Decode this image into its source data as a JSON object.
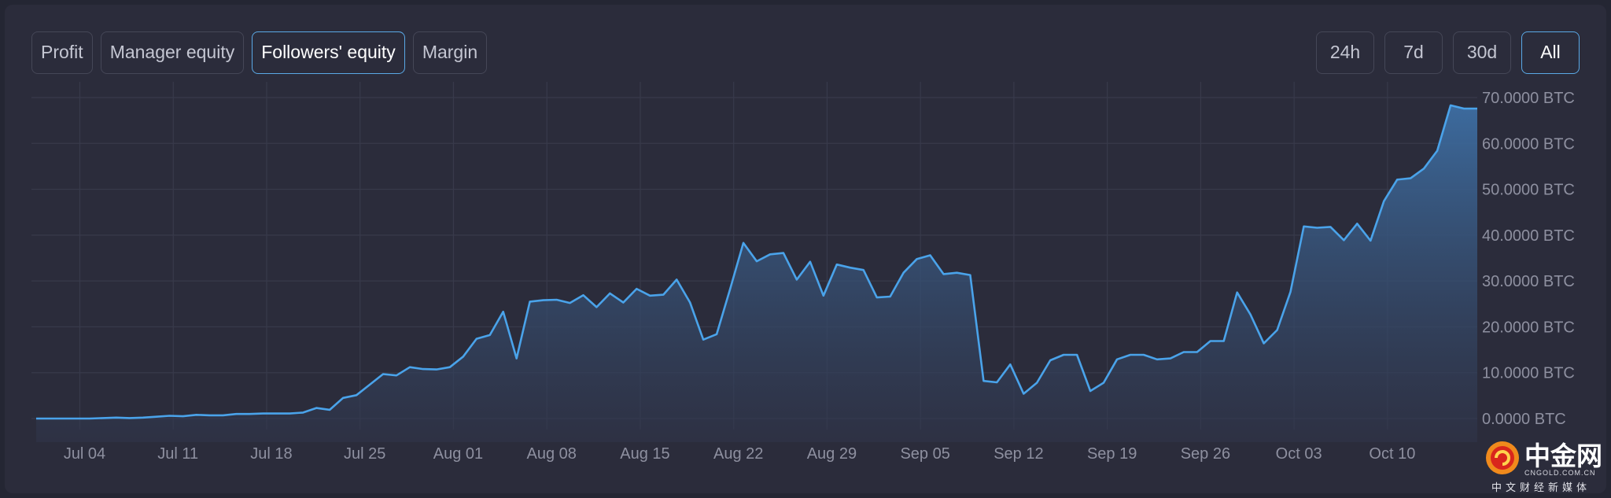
{
  "tabs": [
    {
      "label": "Profit",
      "active": false
    },
    {
      "label": "Manager equity",
      "active": false
    },
    {
      "label": "Followers' equity",
      "active": true
    },
    {
      "label": "Margin",
      "active": false
    }
  ],
  "ranges": [
    {
      "label": "24h",
      "active": false
    },
    {
      "label": "7d",
      "active": false
    },
    {
      "label": "30d",
      "active": false
    },
    {
      "label": "All",
      "active": true
    }
  ],
  "colors": {
    "line": "#4aa3ea",
    "active_border": "#5aa9e6",
    "grid": "#383a4b",
    "background": "#2b2c3b"
  },
  "chart_data": {
    "type": "area",
    "xlabel": "",
    "ylabel": "",
    "x_ticks": [
      "Jul 04",
      "Jul 11",
      "Jul 18",
      "Jul 25",
      "Aug 01",
      "Aug 08",
      "Aug 15",
      "Aug 22",
      "Aug 29",
      "Sep 05",
      "Sep 12",
      "Sep 19",
      "Sep 26",
      "Oct 03",
      "Oct 10"
    ],
    "y_ticks": [
      "0.0000 BTC",
      "10.0000 BTC",
      "20.0000 BTC",
      "30.0000 BTC",
      "40.0000 BTC",
      "50.0000 BTC",
      "60.0000 BTC",
      "70.0000 BTC"
    ],
    "ylim": [
      0,
      70
    ],
    "grid": true,
    "x_start": "Jun 28",
    "x_end": "Oct 16",
    "series": [
      {
        "values": [
          0,
          0,
          0,
          0,
          0,
          0.1,
          0.2,
          0.1,
          0.2,
          0.4,
          0.6,
          0.5,
          0.8,
          0.7,
          0.7,
          1,
          1,
          1.1,
          1.1,
          1.1,
          1.3,
          2.3,
          1.9,
          4.5,
          5.1,
          7.4,
          9.7,
          9.4,
          11.2,
          10.8,
          10.7,
          11.2,
          13.5,
          17.4,
          18.2,
          23.3,
          13.1,
          25.5,
          25.8,
          25.9,
          25.2,
          26.9,
          24.3,
          27.3,
          25.3,
          28.3,
          26.8,
          27,
          30.3,
          25.3,
          17.2,
          18.4,
          28.2,
          38.3,
          34.3,
          35.8,
          36.1,
          30.3,
          34.2,
          26.8,
          33.6,
          32.9,
          32.4,
          26.4,
          26.6,
          31.8,
          34.8,
          35.6,
          31.5,
          31.8,
          31.3,
          8.2,
          7.9,
          11.8,
          5.4,
          7.8,
          12.7,
          13.9,
          13.9,
          6,
          7.8,
          12.9,
          13.9,
          13.9,
          12.9,
          13.1,
          14.5,
          14.5,
          16.9,
          16.9,
          27.5,
          22.7,
          16.4,
          19.3,
          27.6,
          41.9,
          41.6,
          41.8,
          38.9,
          42.5,
          38.8,
          47.4,
          52.1,
          52.4,
          54.5,
          58.4,
          68.3,
          67.6,
          67.6
        ]
      }
    ]
  },
  "watermark": {
    "title": "中金网",
    "site": "CNGOLD.COM.CN",
    "tagline": "中文财经新媒体"
  }
}
